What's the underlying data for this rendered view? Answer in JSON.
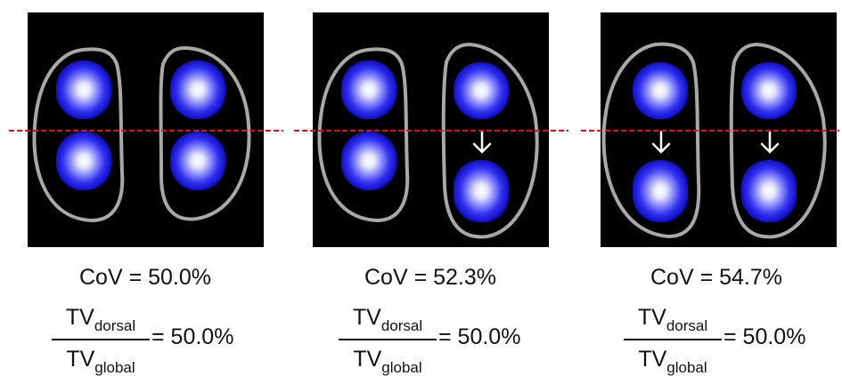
{
  "panels": [
    {
      "cov_label": "CoV = 50.0%",
      "tv_num_main": "TV",
      "tv_num_sub": "dorsal",
      "tv_den_main": "TV",
      "tv_den_sub": "global",
      "ratio_label": "= 50.0%",
      "left_blobs": [
        "upper",
        "lower"
      ],
      "right_blobs": [
        "upper",
        "lower"
      ],
      "left_arrow": false,
      "right_arrow": false
    },
    {
      "cov_label": "CoV = 52.3%",
      "tv_num_main": "TV",
      "tv_num_sub": "dorsal",
      "tv_den_main": "TV",
      "tv_den_sub": "global",
      "ratio_label": "= 50.0%",
      "left_blobs": [
        "upper",
        "lower"
      ],
      "right_blobs": [
        "upper",
        "lowest"
      ],
      "left_arrow": false,
      "right_arrow": true
    },
    {
      "cov_label": "CoV = 54.7%",
      "tv_num_main": "TV",
      "tv_num_sub": "dorsal",
      "tv_den_main": "TV",
      "tv_den_sub": "global",
      "ratio_label": "= 50.0%",
      "left_blobs": [
        "upper",
        "lowest"
      ],
      "right_blobs": [
        "upper",
        "lowest"
      ],
      "left_arrow": true,
      "right_arrow": true
    }
  ],
  "colors": {
    "blob_core": "#ffffff",
    "blob_mid": "#6f6fff",
    "blob_edge": "#1a1adc",
    "outline": "#a8a8a8",
    "dashed_line": "#e0101a",
    "arrow": "#ffffff"
  }
}
